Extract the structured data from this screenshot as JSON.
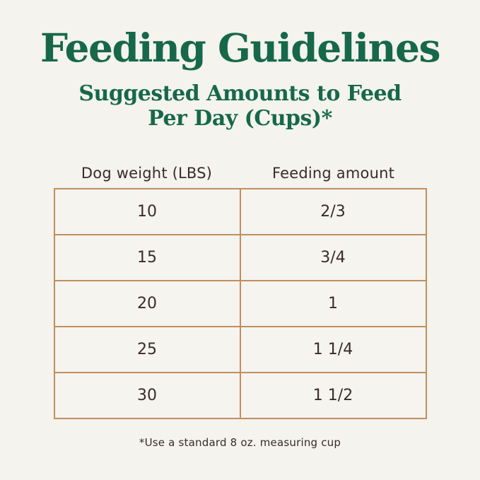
{
  "page": {
    "title": "Feeding Guidelines",
    "subtitle_line1": "Suggested Amounts to Feed",
    "subtitle_line2": "Per Day (Cups)*",
    "footnote": "*Use a standard 8 oz. measuring cup"
  },
  "colors": {
    "title_green": "#17684b",
    "table_border_tan": "#bf8f5f",
    "text_dark_brown": "#3a2b27",
    "background_cream": "#f4f3ed"
  },
  "table": {
    "columns": [
      "Dog weight (LBS)",
      "Feeding amount"
    ],
    "rows": [
      {
        "weight": "10",
        "amount": "2/3"
      },
      {
        "weight": "15",
        "amount": "3/4"
      },
      {
        "weight": "20",
        "amount": "1"
      },
      {
        "weight": "25",
        "amount": "1 1/4"
      },
      {
        "weight": "30",
        "amount": "1 1/2"
      }
    ]
  },
  "chart_data": {
    "type": "table",
    "title": "Feeding Guidelines",
    "subtitle": "Suggested Amounts to Feed Per Day (Cups)*",
    "columns": [
      "Dog weight (LBS)",
      "Feeding amount"
    ],
    "rows": [
      [
        "10",
        "2/3"
      ],
      [
        "15",
        "3/4"
      ],
      [
        "20",
        "1"
      ],
      [
        "25",
        "1 1/4"
      ],
      [
        "30",
        "1 1/2"
      ]
    ],
    "footnote": "*Use a standard 8 oz. measuring cup",
    "layout": "two equal centered columns, headers above bordered grid, grid on"
  }
}
